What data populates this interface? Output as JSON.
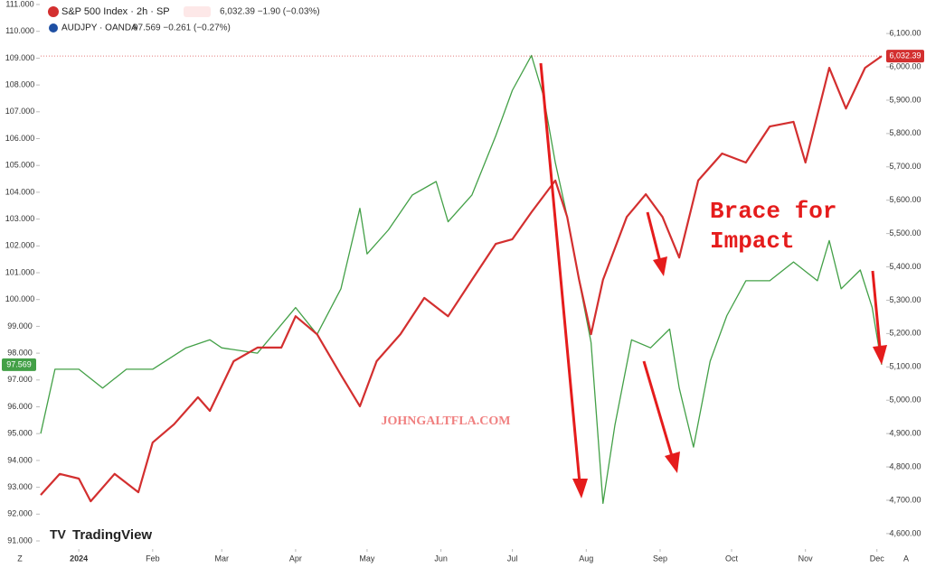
{
  "chart_data": {
    "type": "line",
    "header": [
      {
        "symbol": "S&P 500 Index · 2h · SP",
        "quote": "6,032.39  −1.90 (−0.03%)",
        "color": "#d32f2f"
      },
      {
        "symbol": "AUDJPY · OANDA",
        "quote": "97.569  −0.261 (−0.27%)",
        "color": "#43a047"
      }
    ],
    "annotations": [
      "Brace for",
      "Impact"
    ],
    "watermark": "JOHNGALTFLA.COM",
    "brand": "TradingView",
    "corner_labels": [
      "Z",
      "A"
    ],
    "xlim": [
      -16,
      337
    ],
    "xticks": [
      {
        "value": 0,
        "label": "2024"
      },
      {
        "value": 31,
        "label": "Feb"
      },
      {
        "value": 60,
        "label": "Mar"
      },
      {
        "value": 91,
        "label": "Apr"
      },
      {
        "value": 121,
        "label": "May"
      },
      {
        "value": 152,
        "label": "Jun"
      },
      {
        "value": 182,
        "label": "Jul"
      },
      {
        "value": 213,
        "label": "Aug"
      },
      {
        "value": 244,
        "label": "Sep"
      },
      {
        "value": 274,
        "label": "Oct"
      },
      {
        "value": 305,
        "label": "Nov"
      },
      {
        "value": 335,
        "label": "Dec"
      }
    ],
    "ylim": [
      91,
      111
    ],
    "yticks": [
      {
        "value": 91,
        "label": "91.000"
      },
      {
        "value": 92,
        "label": "92.000"
      },
      {
        "value": 93,
        "label": "93.000"
      },
      {
        "value": 94,
        "label": "94.000"
      },
      {
        "value": 95,
        "label": "95.000"
      },
      {
        "value": 96,
        "label": "96.000"
      },
      {
        "value": 97,
        "label": "97.000"
      },
      {
        "value": 98,
        "label": "98.000"
      },
      {
        "value": 99,
        "label": "99.000"
      },
      {
        "value": 100,
        "label": "100.000"
      },
      {
        "value": 101,
        "label": "101.000"
      },
      {
        "value": 102,
        "label": "102.000"
      },
      {
        "value": 103,
        "label": "103.000"
      },
      {
        "value": 104,
        "label": "104.000"
      },
      {
        "value": 105,
        "label": "105.000"
      },
      {
        "value": 106,
        "label": "106.000"
      },
      {
        "value": 107,
        "label": "107.000"
      },
      {
        "value": 108,
        "label": "108.000"
      },
      {
        "value": 109,
        "label": "109.000"
      },
      {
        "value": 110,
        "label": "110.000"
      },
      {
        "value": 111,
        "label": "111.000"
      }
    ],
    "y2lim": [
      4578,
      6187
    ],
    "y2ticks": [
      {
        "value": 4600,
        "label": "4,600.00"
      },
      {
        "value": 4700,
        "label": "4,700.00"
      },
      {
        "value": 4800,
        "label": "4,800.00"
      },
      {
        "value": 4900,
        "label": "4,900.00"
      },
      {
        "value": 5000,
        "label": "5,000.00"
      },
      {
        "value": 5100,
        "label": "5,100.00"
      },
      {
        "value": 5200,
        "label": "5,200.00"
      },
      {
        "value": 5300,
        "label": "5,300.00"
      },
      {
        "value": 5400,
        "label": "5,400.00"
      },
      {
        "value": 5500,
        "label": "5,500.00"
      },
      {
        "value": 5600,
        "label": "5,600.00"
      },
      {
        "value": 5700,
        "label": "5,700.00"
      },
      {
        "value": 5800,
        "label": "5,800.00"
      },
      {
        "value": 5900,
        "label": "5,900.00"
      },
      {
        "value": 6000,
        "label": "6,000.00"
      },
      {
        "value": 6100,
        "label": "6,100.00"
      }
    ],
    "series": [
      {
        "name": "AUDJPY · OANDA",
        "color": "#43a047",
        "axis": "y",
        "last_label": "97.569",
        "last_value": 97.569,
        "x": [
          -16,
          -10,
          0,
          10,
          20,
          31,
          45,
          55,
          60,
          75,
          91,
          100,
          110,
          118,
          121,
          130,
          140,
          150,
          155,
          165,
          175,
          182,
          190,
          195,
          200,
          205,
          210,
          215,
          220,
          225,
          232,
          240,
          248,
          252,
          258,
          265,
          272,
          280,
          290,
          300,
          310,
          315,
          320,
          328,
          333,
          337
        ],
        "values": [
          95.0,
          97.4,
          97.4,
          96.7,
          97.4,
          97.4,
          98.2,
          98.5,
          98.2,
          98.0,
          99.7,
          98.7,
          100.4,
          103.4,
          101.7,
          102.6,
          103.9,
          104.4,
          102.9,
          103.9,
          106.1,
          107.8,
          109.1,
          107.6,
          105.1,
          103.1,
          100.7,
          98.4,
          92.4,
          95.3,
          98.5,
          98.2,
          98.9,
          96.7,
          94.5,
          97.7,
          99.4,
          100.7,
          100.7,
          101.4,
          100.7,
          102.2,
          100.4,
          101.1,
          99.7,
          97.569
        ]
      },
      {
        "name": "S&P 500 Index · 2h · SP",
        "color": "#d32f2f",
        "axis": "y2",
        "last_label": "6,032.39",
        "last_value": 6032.39,
        "x": [
          -16,
          -8,
          0,
          5,
          15,
          25,
          31,
          40,
          50,
          55,
          65,
          75,
          85,
          91,
          100,
          110,
          118,
          125,
          135,
          145,
          155,
          165,
          175,
          182,
          190,
          200,
          205,
          210,
          215,
          220,
          230,
          238,
          245,
          252,
          260,
          270,
          280,
          290,
          300,
          305,
          315,
          322,
          330,
          337
        ],
        "values": [
          4716,
          4779,
          4765,
          4697,
          4779,
          4724,
          4873,
          4928,
          5009,
          4968,
          5117,
          5158,
          5158,
          5252,
          5198,
          5076,
          4982,
          5117,
          5198,
          5307,
          5252,
          5361,
          5469,
          5483,
          5564,
          5659,
          5550,
          5361,
          5198,
          5361,
          5550,
          5618,
          5550,
          5428,
          5659,
          5740,
          5713,
          5821,
          5835,
          5713,
          5997,
          5875,
          5997,
          6032.39
        ]
      }
    ]
  }
}
